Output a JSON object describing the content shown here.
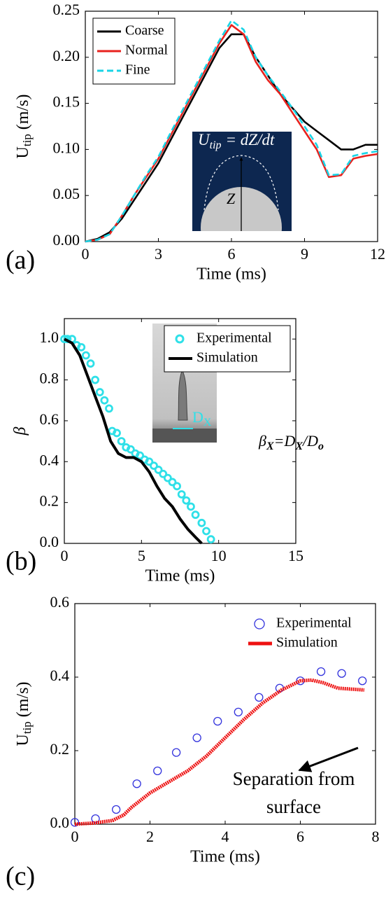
{
  "chart_data": [
    {
      "type": "line",
      "panel_label": "(a)",
      "xlabel": "Time (ms)",
      "ylabel": "U",
      "ylabel_sub": "tip",
      "ylabel_unit": "(m/s)",
      "xlim": [
        0,
        12
      ],
      "ylim": [
        0,
        0.25
      ],
      "xticks": [
        0,
        3,
        6,
        9,
        12
      ],
      "yticks": [
        {
          "value": 0,
          "label": "0.00"
        },
        0.05,
        {
          "value": 0.1,
          "label": "0.10"
        },
        0.15,
        {
          "value": 0.2,
          "label": "0.20"
        },
        0.25
      ],
      "legend": "upper left",
      "x": [
        0,
        0.5,
        1,
        1.5,
        2,
        2.5,
        3,
        3.5,
        4,
        4.5,
        5,
        5.5,
        6,
        6.5,
        7,
        7.5,
        8,
        8.5,
        9,
        9.5,
        10,
        10.5,
        11,
        11.5,
        12
      ],
      "series": [
        {
          "name": "Coarse",
          "color": "#000000",
          "style": "solid",
          "values": [
            0,
            0.003,
            0.01,
            0.025,
            0.045,
            0.065,
            0.085,
            0.11,
            0.135,
            0.16,
            0.185,
            0.21,
            0.225,
            0.225,
            0.2,
            0.18,
            0.16,
            0.145,
            0.13,
            0.12,
            0.11,
            0.1,
            0.1,
            0.105,
            0.105
          ]
        },
        {
          "name": "Normal",
          "color": "#e8221e",
          "style": "solid",
          "values": [
            0,
            0.002,
            0.008,
            0.028,
            0.05,
            0.07,
            0.09,
            0.115,
            0.14,
            0.165,
            0.19,
            0.215,
            0.235,
            0.225,
            0.195,
            0.175,
            0.16,
            0.14,
            0.12,
            0.1,
            0.07,
            0.072,
            0.09,
            0.093,
            0.095
          ]
        },
        {
          "name": "Fine",
          "color": "#19d4e6",
          "style": "dashed",
          "values": [
            0,
            0.002,
            0.008,
            0.028,
            0.05,
            0.072,
            0.092,
            0.118,
            0.143,
            0.168,
            0.193,
            0.218,
            0.24,
            0.23,
            0.2,
            0.18,
            0.163,
            0.145,
            0.125,
            0.105,
            0.072,
            0.073,
            0.093,
            0.096,
            0.098
          ]
        }
      ],
      "inset": {
        "formula": [
          "U",
          "tip",
          "= dZ/dt"
        ],
        "label": "Z"
      }
    },
    {
      "type": "line",
      "panel_label": "(b)",
      "xlabel": "Time (ms)",
      "ylabel": "β",
      "xlim": [
        0,
        15
      ],
      "ylim": [
        0,
        1.1
      ],
      "xticks": [
        0,
        5,
        10,
        15
      ],
      "yticks": [
        {
          "value": 0,
          "label": "0.0"
        },
        0.2,
        0.4,
        0.6,
        0.8,
        {
          "value": 1,
          "label": "1.0"
        }
      ],
      "legend": "upper right",
      "series": [
        {
          "name": "Experimental",
          "color": "#2fe0e8",
          "style": "markers",
          "x": [
            0,
            0.2,
            0.5,
            0.8,
            1.1,
            1.4,
            1.7,
            2.0,
            2.3,
            2.6,
            2.9,
            3.1,
            3.4,
            3.7,
            4.0,
            4.3,
            4.6,
            4.9,
            5.2,
            5.5,
            5.8,
            6.1,
            6.4,
            6.7,
            7.0,
            7.3,
            7.6,
            7.9,
            8.2,
            8.5,
            8.9,
            9.2,
            9.5
          ],
          "values": [
            1.0,
            1.0,
            1.0,
            0.97,
            0.96,
            0.92,
            0.88,
            0.8,
            0.74,
            0.7,
            0.66,
            0.55,
            0.54,
            0.5,
            0.47,
            0.46,
            0.44,
            0.43,
            0.41,
            0.4,
            0.38,
            0.36,
            0.34,
            0.32,
            0.3,
            0.28,
            0.24,
            0.21,
            0.18,
            0.14,
            0.1,
            0.06,
            0.02
          ]
        },
        {
          "name": "Simulation",
          "color": "#000000",
          "style": "solid",
          "x": [
            0,
            0.5,
            1,
            1.5,
            2,
            2.5,
            3,
            3.5,
            4,
            4.5,
            5,
            5.5,
            6,
            6.5,
            7,
            7.5,
            8,
            8.5,
            8.9
          ],
          "values": [
            1.0,
            0.98,
            0.92,
            0.82,
            0.72,
            0.62,
            0.5,
            0.44,
            0.42,
            0.42,
            0.4,
            0.35,
            0.28,
            0.22,
            0.18,
            0.12,
            0.07,
            0.03,
            0
          ]
        }
      ],
      "inset": {
        "label": [
          "D",
          "X"
        ]
      },
      "annotation": [
        "β",
        "X",
        "=D",
        "X",
        "/D",
        "o"
      ]
    },
    {
      "type": "line",
      "panel_label": "(c)",
      "xlabel": "Time (ms)",
      "ylabel": "U",
      "ylabel_sub": "tip",
      "ylabel_unit": "(m/s)",
      "xlim": [
        0,
        8
      ],
      "ylim": [
        0,
        0.6
      ],
      "xticks": [
        0,
        2,
        4,
        6,
        8
      ],
      "yticks": [
        {
          "value": 0,
          "label": "0.0"
        },
        0.2,
        0.4,
        0.6
      ],
      "legend": "upper right",
      "series": [
        {
          "name": "Experimental",
          "color": "#3333dd",
          "style": "markers",
          "x": [
            0,
            0.55,
            1.1,
            1.65,
            2.2,
            2.7,
            3.25,
            3.8,
            4.35,
            4.9,
            5.45,
            6.0,
            6.55,
            7.1,
            7.65
          ],
          "values": [
            0.005,
            0.015,
            0.04,
            0.11,
            0.145,
            0.195,
            0.235,
            0.28,
            0.305,
            0.345,
            0.37,
            0.39,
            0.415,
            0.41,
            0.39
          ]
        },
        {
          "name": "Simulation",
          "color": "#ee1111",
          "style": "thick",
          "x": [
            0,
            0.5,
            1,
            1.3,
            1.5,
            2,
            2.5,
            3,
            3.5,
            4,
            4.5,
            5,
            5.5,
            6,
            6.3,
            6.6,
            7,
            7.7
          ],
          "values": [
            0,
            0.003,
            0.01,
            0.025,
            0.045,
            0.085,
            0.115,
            0.145,
            0.185,
            0.235,
            0.285,
            0.33,
            0.365,
            0.39,
            0.392,
            0.385,
            0.37,
            0.365
          ]
        }
      ],
      "annotation": [
        "Separation from",
        "surface"
      ]
    }
  ]
}
